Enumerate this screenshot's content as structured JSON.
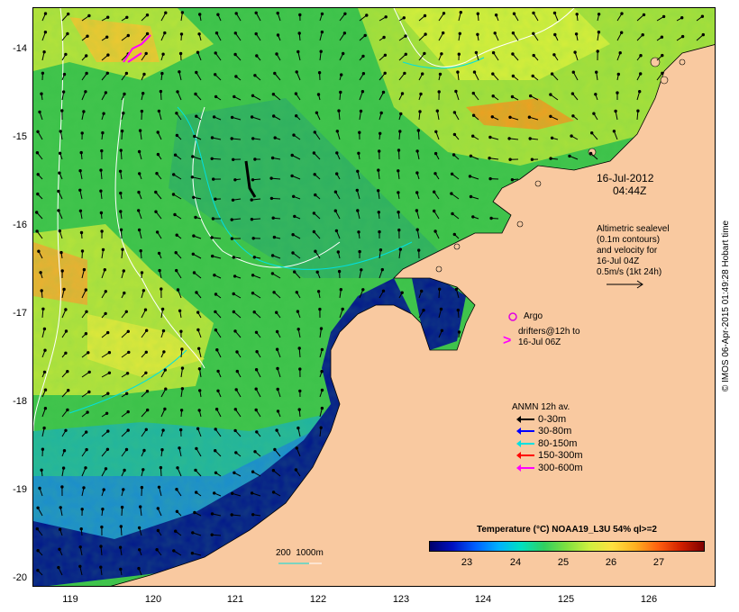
{
  "map": {
    "lat_labels": [
      "-14",
      "-15",
      "-16",
      "-17",
      "-18",
      "-19",
      "-20"
    ],
    "lon_labels": [
      "119",
      "120",
      "121",
      "122",
      "123",
      "124",
      "125",
      "126"
    ],
    "date_line1": "16-Jul-2012",
    "date_line2": "04:44Z",
    "altimetry_note": "Altimetric sealevel\n(0.1m contours)\nand velocity for\n16-Jul 04Z\n0.5m/s (1kt 24h)",
    "argo_label": "Argo",
    "drifters_note": "drifters@12h to\n16-Jul 06Z",
    "anmn_title": "ANMN 12h av.",
    "anmn_legend": [
      {
        "label": "0-30m",
        "color": "#000000"
      },
      {
        "label": "30-80m",
        "color": "#0000ff"
      },
      {
        "label": "80-150m",
        "color": "#00e0e0"
      },
      {
        "label": "150-300m",
        "color": "#ff0000"
      },
      {
        "label": "300-600m",
        "color": "#ff00ff"
      }
    ],
    "isobath_label": "200  1000m",
    "colorbar_title": "Temperature (°C) NOAA19_L3U 54% ql>=2",
    "colorbar_ticks": [
      "23",
      "24",
      "25",
      "26",
      "27"
    ],
    "credit": "© IMOS 06-Apr-2015 01:49:28 Hobart time",
    "colors": {
      "land": "#f9c9a0",
      "deep_blue": "#00148c",
      "argo": "#e000e0",
      "drifter": "#ff00ff"
    }
  }
}
